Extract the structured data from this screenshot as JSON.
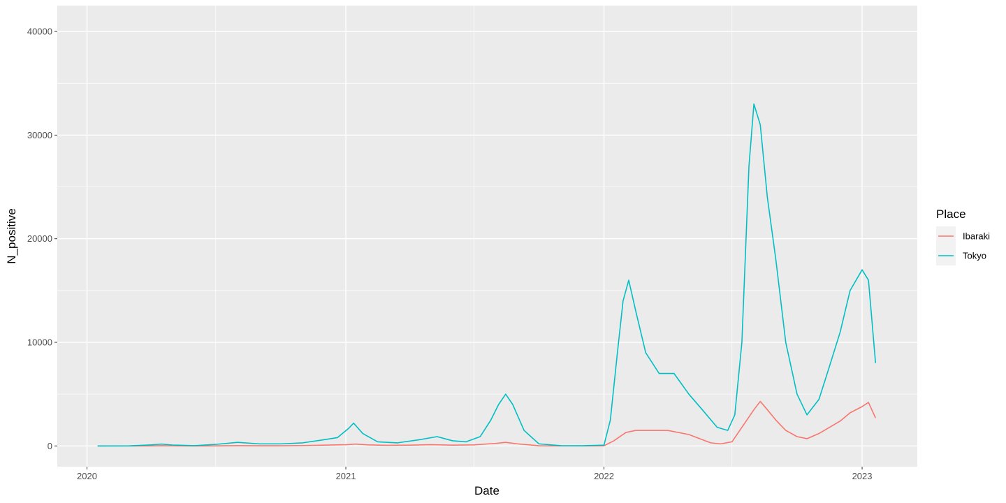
{
  "chart_data": {
    "type": "line",
    "title": "",
    "xlabel": "Date",
    "ylabel": "N_positive",
    "x_type": "date",
    "xlim": [
      "2019-11-20",
      "2023-03-20"
    ],
    "ylim": [
      -2000,
      42500
    ],
    "x_ticks": [
      {
        "value": "2020-01-01",
        "label": "2020"
      },
      {
        "value": "2021-01-01",
        "label": "2021"
      },
      {
        "value": "2022-01-01",
        "label": "2022"
      },
      {
        "value": "2023-01-01",
        "label": "2023"
      }
    ],
    "x_minor_ticks": [
      "2020-07-01",
      "2021-07-01",
      "2022-07-01"
    ],
    "y_ticks": [
      {
        "value": 0,
        "label": "0"
      },
      {
        "value": 10000,
        "label": "10000"
      },
      {
        "value": 20000,
        "label": "20000"
      },
      {
        "value": 30000,
        "label": "30000"
      },
      {
        "value": 40000,
        "label": "40000"
      }
    ],
    "y_minor_ticks": [
      5000,
      15000,
      25000,
      35000
    ],
    "grid": true,
    "panel_background": "#ebebeb",
    "grid_color": "#ffffff",
    "legend": {
      "title": "Place",
      "position": "right"
    },
    "series": [
      {
        "name": "Ibaraki",
        "color": "#f8766d",
        "points": [
          [
            "2020-01-16",
            0
          ],
          [
            "2020-03-01",
            0
          ],
          [
            "2020-04-01",
            10
          ],
          [
            "2020-04-15",
            30
          ],
          [
            "2020-05-01",
            15
          ],
          [
            "2020-06-01",
            0
          ],
          [
            "2020-07-01",
            10
          ],
          [
            "2020-08-01",
            30
          ],
          [
            "2020-09-01",
            20
          ],
          [
            "2020-10-01",
            20
          ],
          [
            "2020-11-01",
            40
          ],
          [
            "2020-12-01",
            80
          ],
          [
            "2021-01-01",
            120
          ],
          [
            "2021-01-15",
            180
          ],
          [
            "2021-02-01",
            100
          ],
          [
            "2021-03-01",
            60
          ],
          [
            "2021-04-01",
            80
          ],
          [
            "2021-05-01",
            120
          ],
          [
            "2021-06-01",
            80
          ],
          [
            "2021-07-01",
            100
          ],
          [
            "2021-08-01",
            250
          ],
          [
            "2021-08-15",
            350
          ],
          [
            "2021-09-01",
            200
          ],
          [
            "2021-10-01",
            20
          ],
          [
            "2021-11-01",
            5
          ],
          [
            "2021-12-01",
            5
          ],
          [
            "2022-01-01",
            20
          ],
          [
            "2022-01-15",
            500
          ],
          [
            "2022-02-01",
            1300
          ],
          [
            "2022-02-15",
            1500
          ],
          [
            "2022-03-01",
            1500
          ],
          [
            "2022-04-01",
            1500
          ],
          [
            "2022-05-01",
            1100
          ],
          [
            "2022-06-01",
            300
          ],
          [
            "2022-06-15",
            200
          ],
          [
            "2022-07-01",
            400
          ],
          [
            "2022-07-15",
            1800
          ],
          [
            "2022-08-01",
            3500
          ],
          [
            "2022-08-10",
            4300
          ],
          [
            "2022-08-20",
            3500
          ],
          [
            "2022-09-01",
            2500
          ],
          [
            "2022-09-15",
            1500
          ],
          [
            "2022-10-01",
            900
          ],
          [
            "2022-10-15",
            700
          ],
          [
            "2022-11-01",
            1200
          ],
          [
            "2022-12-01",
            2400
          ],
          [
            "2022-12-15",
            3200
          ],
          [
            "2023-01-01",
            3800
          ],
          [
            "2023-01-10",
            4200
          ],
          [
            "2023-01-20",
            2700
          ]
        ]
      },
      {
        "name": "Tokyo",
        "color": "#00bfc4",
        "points": [
          [
            "2020-01-16",
            0
          ],
          [
            "2020-03-01",
            10
          ],
          [
            "2020-04-01",
            100
          ],
          [
            "2020-04-15",
            180
          ],
          [
            "2020-05-01",
            90
          ],
          [
            "2020-06-01",
            30
          ],
          [
            "2020-07-01",
            150
          ],
          [
            "2020-08-01",
            350
          ],
          [
            "2020-09-01",
            200
          ],
          [
            "2020-10-01",
            200
          ],
          [
            "2020-11-01",
            300
          ],
          [
            "2020-12-01",
            600
          ],
          [
            "2020-12-20",
            800
          ],
          [
            "2021-01-05",
            1700
          ],
          [
            "2021-01-12",
            2200
          ],
          [
            "2021-01-25",
            1200
          ],
          [
            "2021-02-15",
            400
          ],
          [
            "2021-03-15",
            300
          ],
          [
            "2021-04-15",
            600
          ],
          [
            "2021-05-10",
            900
          ],
          [
            "2021-06-01",
            500
          ],
          [
            "2021-06-20",
            400
          ],
          [
            "2021-07-10",
            900
          ],
          [
            "2021-07-25",
            2500
          ],
          [
            "2021-08-05",
            4000
          ],
          [
            "2021-08-15",
            5000
          ],
          [
            "2021-08-25",
            4000
          ],
          [
            "2021-09-10",
            1500
          ],
          [
            "2021-10-01",
            200
          ],
          [
            "2021-11-01",
            25
          ],
          [
            "2021-12-01",
            20
          ],
          [
            "2022-01-01",
            80
          ],
          [
            "2022-01-10",
            2500
          ],
          [
            "2022-01-20",
            9000
          ],
          [
            "2022-01-28",
            14000
          ],
          [
            "2022-02-05",
            16000
          ],
          [
            "2022-02-15",
            13000
          ],
          [
            "2022-03-01",
            9000
          ],
          [
            "2022-03-20",
            7000
          ],
          [
            "2022-04-10",
            7000
          ],
          [
            "2022-05-01",
            5000
          ],
          [
            "2022-05-20",
            3500
          ],
          [
            "2022-06-10",
            1800
          ],
          [
            "2022-06-25",
            1500
          ],
          [
            "2022-07-05",
            3000
          ],
          [
            "2022-07-15",
            10000
          ],
          [
            "2022-07-25",
            27000
          ],
          [
            "2022-08-01",
            33000
          ],
          [
            "2022-08-10",
            31000
          ],
          [
            "2022-08-20",
            24000
          ],
          [
            "2022-09-01",
            18000
          ],
          [
            "2022-09-15",
            10000
          ],
          [
            "2022-10-01",
            5000
          ],
          [
            "2022-10-15",
            3000
          ],
          [
            "2022-11-01",
            4500
          ],
          [
            "2022-11-15",
            7500
          ],
          [
            "2022-12-01",
            11000
          ],
          [
            "2022-12-15",
            15000
          ],
          [
            "2023-01-01",
            17000
          ],
          [
            "2023-01-10",
            16000
          ],
          [
            "2023-01-20",
            8000
          ]
        ]
      }
    ]
  }
}
